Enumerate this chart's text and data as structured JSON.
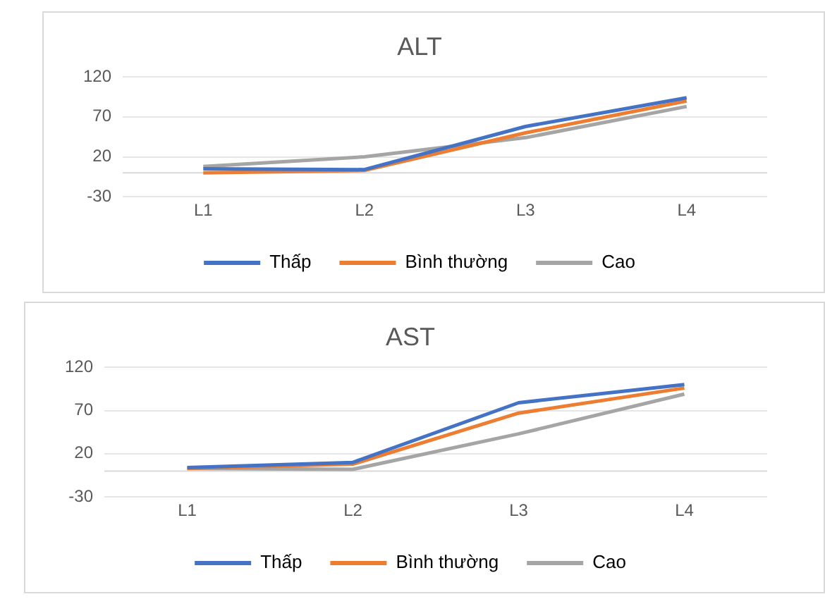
{
  "chart_data": [
    {
      "type": "line",
      "title": "ALT",
      "categories": [
        "L1",
        "L2",
        "L3",
        "L4"
      ],
      "ylim": [
        -30,
        120
      ],
      "yticks": [
        -30,
        20,
        70,
        120
      ],
      "grid": "y",
      "legend": "bottom",
      "marker": "none",
      "line_style": "solid",
      "series": [
        {
          "name": "Thấp",
          "color": "#4472c4",
          "values": [
            5,
            4,
            58,
            94
          ]
        },
        {
          "name": "Bình thường",
          "color": "#ed7d31",
          "values": [
            0,
            3,
            50,
            90
          ]
        },
        {
          "name": "Cao",
          "color": "#a5a5a5",
          "values": [
            8,
            20,
            44,
            83
          ]
        }
      ]
    },
    {
      "type": "line",
      "title": "AST",
      "categories": [
        "L1",
        "L2",
        "L3",
        "L4"
      ],
      "ylim": [
        -30,
        120
      ],
      "yticks": [
        -30,
        20,
        70,
        120
      ],
      "grid": "y",
      "legend": "bottom",
      "marker": "none",
      "line_style": "solid",
      "series": [
        {
          "name": "Thấp",
          "color": "#4472c4",
          "values": [
            4,
            10,
            79,
            100
          ]
        },
        {
          "name": "Bình thường",
          "color": "#ed7d31",
          "values": [
            3,
            8,
            67,
            96
          ]
        },
        {
          "name": "Cao",
          "color": "#a5a5a5",
          "values": [
            3,
            2,
            43,
            89
          ]
        }
      ]
    }
  ]
}
